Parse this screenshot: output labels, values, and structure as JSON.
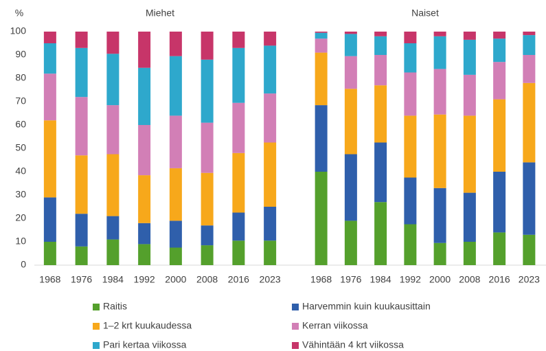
{
  "chart_data": [
    {
      "type": "bar",
      "stacked": true,
      "title": "Miehet",
      "y_label": "%",
      "categories": [
        "1968",
        "1976",
        "1984",
        "1992",
        "2000",
        "2008",
        "2016",
        "2023"
      ],
      "ylim": [
        0,
        100
      ],
      "yticks": [
        0,
        10,
        20,
        30,
        40,
        50,
        60,
        70,
        80,
        90,
        100
      ],
      "series": [
        {
          "name": "Raitis",
          "color": "#54a02c",
          "values": [
            10,
            8,
            11,
            9,
            7.5,
            8.5,
            10.5,
            10.5
          ]
        },
        {
          "name": "Harvemmin kuin kuukausittain",
          "color": "#2f5fab",
          "values": [
            19,
            14,
            10,
            9,
            11.5,
            8.5,
            12,
            14.5
          ]
        },
        {
          "name": "1–2 krt kuukaudessa",
          "color": "#f7a81b",
          "values": [
            33,
            25,
            26.5,
            20.5,
            22.5,
            22.5,
            25.5,
            27.5
          ]
        },
        {
          "name": "Kerran viikossa",
          "color": "#d27fb6",
          "values": [
            20,
            25,
            21,
            21.5,
            22.5,
            21.5,
            21.5,
            21
          ]
        },
        {
          "name": "Pari kertaa viikossa",
          "color": "#2ea8cc",
          "values": [
            13,
            21,
            22,
            24.5,
            25.5,
            27,
            23.5,
            20.5
          ]
        },
        {
          "name": "Vähintään 4 krt viikossa",
          "color": "#c73569",
          "values": [
            5,
            7,
            9.5,
            15.5,
            10.5,
            12,
            7,
            6
          ]
        }
      ]
    },
    {
      "type": "bar",
      "stacked": true,
      "title": "Naiset",
      "categories": [
        "1968",
        "1976",
        "1984",
        "1992",
        "2000",
        "2008",
        "2016",
        "2023"
      ],
      "series": [
        {
          "color": "#54a02c",
          "values": [
            40,
            19,
            27,
            17.5,
            9.5,
            10,
            14,
            13
          ]
        },
        {
          "color": "#2f5fab",
          "values": [
            28.5,
            28.5,
            25.5,
            20,
            23.5,
            21,
            26,
            31
          ]
        },
        {
          "color": "#f7a81b",
          "values": [
            22.5,
            28,
            24.5,
            26.5,
            31.5,
            33,
            31,
            34
          ]
        },
        {
          "color": "#d27fb6",
          "values": [
            6,
            14,
            13,
            18.5,
            19.5,
            17.5,
            16,
            12
          ]
        },
        {
          "color": "#2ea8cc",
          "values": [
            2.5,
            9.5,
            8,
            12.5,
            14,
            15,
            10,
            8.5
          ]
        },
        {
          "color": "#c73569",
          "values": [
            0.5,
            1,
            2,
            5,
            2,
            3.5,
            3,
            1.5
          ]
        }
      ]
    }
  ]
}
